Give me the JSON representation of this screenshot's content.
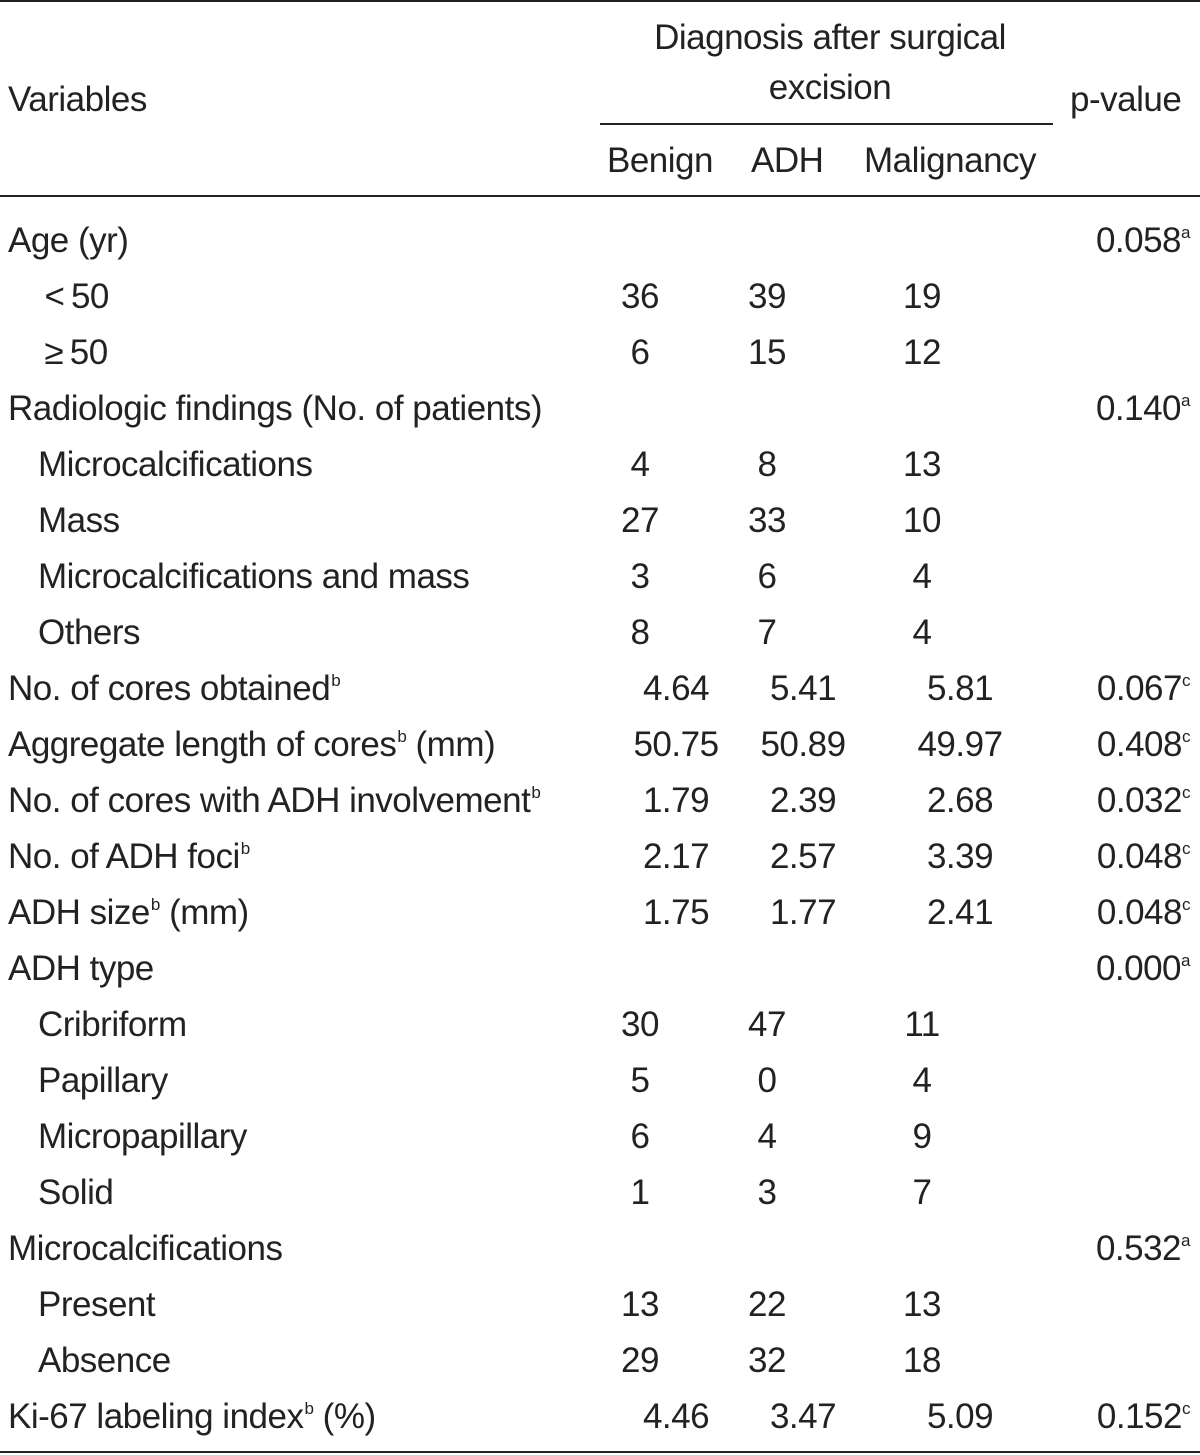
{
  "header": {
    "variables": "Variables",
    "group_title": "Diagnosis after surgical excision",
    "group_title_line1": "Diagnosis after surgical",
    "group_title_line2": "excision",
    "col_benign": "Benign",
    "col_adh": "ADH",
    "col_malignancy": "Malignancy",
    "col_pvalue": "p-value"
  },
  "rows": [
    {
      "label": "Age (yr)",
      "sup": "",
      "unit": "",
      "indent": false,
      "benign": "",
      "adh": "",
      "malignancy": "",
      "p": "0.058",
      "p_sup": "a"
    },
    {
      "label": " < 50",
      "sup": "",
      "unit": "",
      "indent": true,
      "benign": "36",
      "adh": "39",
      "malignancy": "19",
      "p": "",
      "p_sup": ""
    },
    {
      "label": " ≥ 50",
      "sup": "",
      "unit": "",
      "indent": true,
      "benign": "6",
      "adh": "15",
      "malignancy": "12",
      "p": "",
      "p_sup": ""
    },
    {
      "label": "Radiologic findings (No. of patients)",
      "sup": "",
      "unit": "",
      "indent": false,
      "benign": "",
      "adh": "",
      "malignancy": "",
      "p": "0.140",
      "p_sup": "a"
    },
    {
      "label": "Microcalcifications",
      "sup": "",
      "unit": "",
      "indent": true,
      "benign": "4",
      "adh": "8",
      "malignancy": "13",
      "p": "",
      "p_sup": ""
    },
    {
      "label": "Mass",
      "sup": "",
      "unit": "",
      "indent": true,
      "benign": "27",
      "adh": "33",
      "malignancy": "10",
      "p": "",
      "p_sup": ""
    },
    {
      "label": "Microcalcifications and mass",
      "sup": "",
      "unit": "",
      "indent": true,
      "benign": "3",
      "adh": "6",
      "malignancy": "4",
      "p": "",
      "p_sup": ""
    },
    {
      "label": "Others",
      "sup": "",
      "unit": "",
      "indent": true,
      "benign": "8",
      "adh": "7",
      "malignancy": "4",
      "p": "",
      "p_sup": ""
    },
    {
      "label": "No. of cores obtained",
      "sup": "b",
      "unit": "",
      "indent": false,
      "benign": "4.64",
      "adh": "5.41",
      "malignancy": "5.81",
      "p": "0.067",
      "p_sup": "c"
    },
    {
      "label": "Aggregate length of cores",
      "sup": "b",
      "unit": " (mm)",
      "indent": false,
      "benign": "50.75",
      "adh": "50.89",
      "malignancy": "49.97",
      "p": "0.408",
      "p_sup": "c"
    },
    {
      "label": "No. of cores with ADH involvement",
      "sup": "b",
      "unit": "",
      "indent": false,
      "benign": "1.79",
      "adh": "2.39",
      "malignancy": "2.68",
      "p": "0.032",
      "p_sup": "c"
    },
    {
      "label": "No. of ADH foci",
      "sup": "b",
      "unit": "",
      "indent": false,
      "benign": "2.17",
      "adh": "2.57",
      "malignancy": "3.39",
      "p": "0.048",
      "p_sup": "c"
    },
    {
      "label": "ADH size",
      "sup": "b",
      "unit": " (mm)",
      "indent": false,
      "benign": "1.75",
      "adh": "1.77",
      "malignancy": "2.41",
      "p": "0.048",
      "p_sup": "c"
    },
    {
      "label": "ADH type",
      "sup": "",
      "unit": "",
      "indent": false,
      "benign": "",
      "adh": "",
      "malignancy": "",
      "p": "0.000",
      "p_sup": "a"
    },
    {
      "label": "Cribriform",
      "sup": "",
      "unit": "",
      "indent": true,
      "benign": "30",
      "adh": "47",
      "malignancy": "11",
      "p": "",
      "p_sup": ""
    },
    {
      "label": "Papillary",
      "sup": "",
      "unit": "",
      "indent": true,
      "benign": "5",
      "adh": "0",
      "malignancy": "4",
      "p": "",
      "p_sup": ""
    },
    {
      "label": "Micropapillary",
      "sup": "",
      "unit": "",
      "indent": true,
      "benign": "6",
      "adh": "4",
      "malignancy": "9",
      "p": "",
      "p_sup": ""
    },
    {
      "label": "Solid",
      "sup": "",
      "unit": "",
      "indent": true,
      "benign": "1",
      "adh": "3",
      "malignancy": "7",
      "p": "",
      "p_sup": ""
    },
    {
      "label": "Microcalcifications",
      "sup": "",
      "unit": "",
      "indent": false,
      "benign": "",
      "adh": "",
      "malignancy": "",
      "p": "0.532",
      "p_sup": "a"
    },
    {
      "label": "Present",
      "sup": "",
      "unit": "",
      "indent": true,
      "benign": "13",
      "adh": "22",
      "malignancy": "13",
      "p": "",
      "p_sup": ""
    },
    {
      "label": "Absence",
      "sup": "",
      "unit": "",
      "indent": true,
      "benign": "29",
      "adh": "32",
      "malignancy": "18",
      "p": "",
      "p_sup": ""
    },
    {
      "label": "Ki-67 labeling index",
      "sup": "b",
      "unit": " (%)",
      "indent": false,
      "benign": "4.46",
      "adh": "3.47",
      "malignancy": "5.09",
      "p": "0.152",
      "p_sup": "c"
    }
  ]
}
